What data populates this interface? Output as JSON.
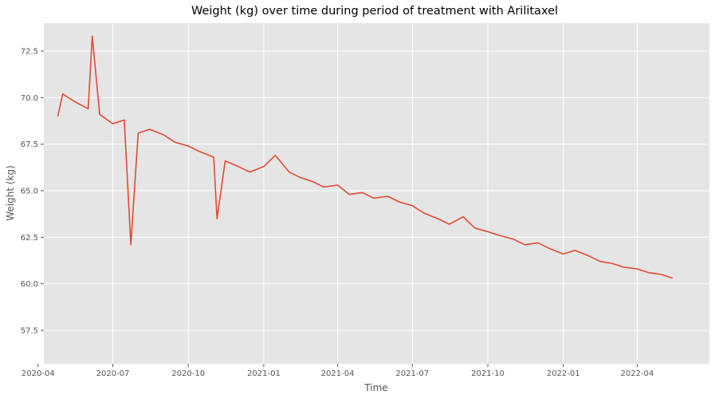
{
  "chart_data": {
    "type": "line",
    "title": "Weight (kg) over time during period of treatment with Arilitaxel",
    "xlabel": "Time",
    "ylabel": "Weight (kg)",
    "style": "ggplot",
    "grid": true,
    "line_color": "#E24A33",
    "background_color": "#E5E5E5",
    "grid_color": "#FFFFFF",
    "x_range": [
      "2020-04-08",
      "2022-06-28"
    ],
    "ylim": [
      55.7,
      74.0
    ],
    "x_ticks": [
      "2020-04-01",
      "2020-07-01",
      "2020-10-01",
      "2021-01-01",
      "2021-04-01",
      "2021-07-01",
      "2021-10-01",
      "2022-01-01",
      "2022-04-01"
    ],
    "x_tick_labels": [
      "2020-04",
      "2020-07",
      "2020-10",
      "2021-01",
      "2021-04",
      "2021-07",
      "2021-10",
      "2022-01",
      "2022-04"
    ],
    "y_ticks": [
      57.5,
      60.0,
      62.5,
      65.0,
      67.5,
      70.0,
      72.5
    ],
    "y_tick_labels": [
      "57.5",
      "60.0",
      "62.5",
      "65.0",
      "67.5",
      "70.0",
      "72.5"
    ],
    "series": [
      {
        "x": [
          "2020-04-25",
          "2020-05-01",
          "2020-05-15",
          "2020-06-01",
          "2020-06-06",
          "2020-06-15",
          "2020-07-01",
          "2020-07-15",
          "2020-07-23",
          "2020-08-01",
          "2020-08-15",
          "2020-09-01",
          "2020-09-15",
          "2020-10-01",
          "2020-10-15",
          "2020-11-01",
          "2020-11-05",
          "2020-11-15",
          "2020-12-01",
          "2020-12-15",
          "2021-01-01",
          "2021-01-15",
          "2021-02-01",
          "2021-02-15",
          "2021-03-01",
          "2021-03-15",
          "2021-04-01",
          "2021-04-15",
          "2021-05-01",
          "2021-05-15",
          "2021-06-01",
          "2021-06-15",
          "2021-07-01",
          "2021-07-15",
          "2021-08-01",
          "2021-08-15",
          "2021-09-01",
          "2021-09-15",
          "2021-10-01",
          "2021-10-15",
          "2021-11-01",
          "2021-11-15",
          "2021-12-01",
          "2021-12-15",
          "2022-01-01",
          "2022-01-15",
          "2022-02-01",
          "2022-02-15",
          "2022-03-01",
          "2022-03-15",
          "2022-04-01",
          "2022-04-15",
          "2022-05-01",
          "2022-05-14"
        ],
        "values": [
          69.0,
          70.2,
          69.8,
          69.4,
          73.3,
          69.1,
          68.6,
          68.8,
          62.1,
          68.1,
          68.3,
          68.0,
          67.6,
          67.4,
          67.1,
          66.8,
          63.5,
          66.6,
          66.3,
          66.0,
          66.3,
          66.9,
          66.0,
          65.7,
          65.5,
          65.2,
          65.3,
          64.8,
          64.9,
          64.6,
          64.7,
          64.4,
          64.2,
          63.8,
          63.5,
          63.2,
          63.6,
          63.0,
          62.8,
          62.6,
          62.4,
          62.1,
          62.2,
          61.9,
          61.6,
          61.8,
          61.5,
          61.2,
          61.1,
          60.9,
          60.8,
          60.6,
          60.5,
          60.3
        ]
      }
    ]
  }
}
